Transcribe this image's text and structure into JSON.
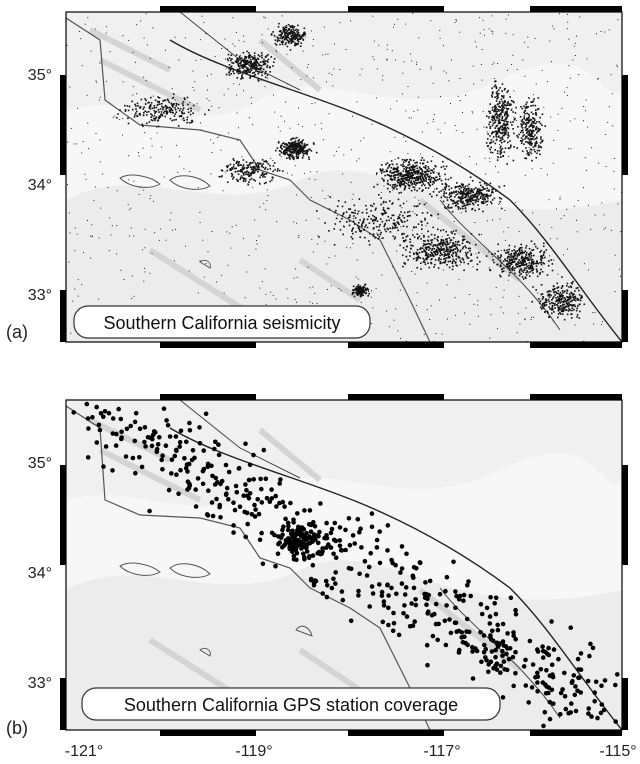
{
  "figure": {
    "panel_a": {
      "letter": "(a)",
      "caption": "Southern California seismicity",
      "y_ticks": [
        "35°",
        "34°",
        "33°"
      ]
    },
    "panel_b": {
      "letter": "(b)",
      "caption": "Southern California GPS station coverage",
      "y_ticks": [
        "35°",
        "34°",
        "33°"
      ],
      "x_ticks": [
        "-121°",
        "-119°",
        "-117°",
        "-115°"
      ]
    },
    "colors": {
      "frame": "#000000",
      "terrain": "#e6e6e6",
      "seismic": "#111111",
      "station": "#000000"
    }
  }
}
